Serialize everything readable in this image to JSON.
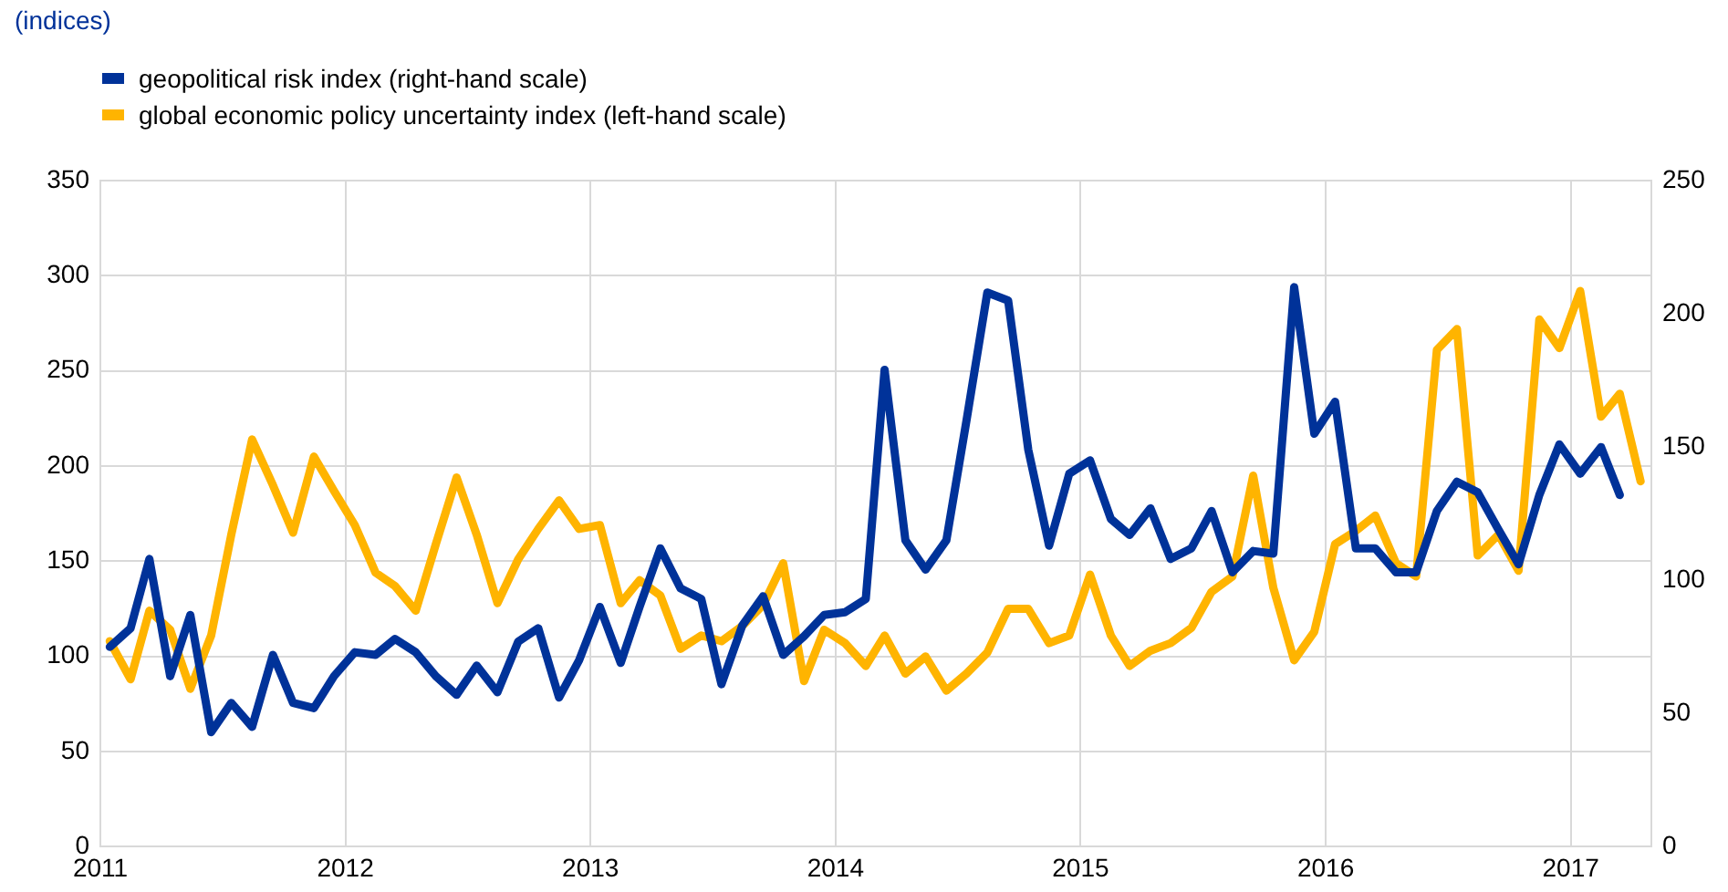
{
  "chart_data": {
    "type": "line",
    "annotations": [
      "(indices)"
    ],
    "x": [
      "2011-01-15",
      "2011-02-15",
      "2011-03-15",
      "2011-04-15",
      "2011-05-15",
      "2011-06-15",
      "2011-07-15",
      "2011-08-15",
      "2011-09-15",
      "2011-10-15",
      "2011-11-15",
      "2011-12-15",
      "2012-01-15",
      "2012-02-15",
      "2012-03-15",
      "2012-04-15",
      "2012-05-15",
      "2012-06-15",
      "2012-07-15",
      "2012-08-15",
      "2012-09-15",
      "2012-10-15",
      "2012-11-15",
      "2012-12-15",
      "2013-01-15",
      "2013-02-15",
      "2013-03-15",
      "2013-04-15",
      "2013-05-15",
      "2013-06-15",
      "2013-07-15",
      "2013-08-15",
      "2013-09-15",
      "2013-10-15",
      "2013-11-15",
      "2013-12-15",
      "2014-01-15",
      "2014-02-15",
      "2014-03-15",
      "2014-04-15",
      "2014-05-15",
      "2014-06-15",
      "2014-07-15",
      "2014-08-15",
      "2014-09-15",
      "2014-10-15",
      "2014-11-15",
      "2014-12-15",
      "2015-01-15",
      "2015-02-15",
      "2015-03-15",
      "2015-04-15",
      "2015-05-15",
      "2015-06-15",
      "2015-07-15",
      "2015-08-15",
      "2015-09-15",
      "2015-10-15",
      "2015-11-15",
      "2015-12-15",
      "2016-01-15",
      "2016-02-15",
      "2016-03-15",
      "2016-04-15",
      "2016-05-15",
      "2016-06-15",
      "2016-07-15",
      "2016-08-15",
      "2016-09-15",
      "2016-10-15",
      "2016-11-15",
      "2016-12-15",
      "2017-01-15",
      "2017-02-15",
      "2017-03-15",
      "2017-04-15"
    ],
    "series": [
      {
        "name": "geopolitical risk index (right-hand scale)",
        "color": "#003299",
        "axis": "y2",
        "values": [
          75,
          82,
          108,
          64,
          87,
          43,
          54,
          45,
          72,
          54,
          52,
          64,
          73,
          72,
          78,
          73,
          64,
          57,
          68,
          58,
          77,
          82,
          56,
          70,
          90,
          69,
          90,
          112,
          97,
          93,
          61,
          83,
          94,
          72,
          79,
          87,
          88,
          93,
          179,
          115,
          104,
          115,
          160,
          208,
          205,
          149,
          113,
          140,
          145,
          123,
          117,
          127,
          108,
          112,
          126,
          103,
          111,
          110,
          210,
          155,
          167,
          112,
          112,
          103,
          103,
          126,
          137,
          133,
          119,
          106,
          132,
          151,
          140,
          150,
          132,
          null
        ]
      },
      {
        "name": "global economic policy uncertainty index (left-hand scale)",
        "color": "#ffb400",
        "values": [
          108,
          88,
          124,
          114,
          83,
          111,
          164,
          214,
          190,
          165,
          205,
          187,
          169,
          144,
          137,
          124,
          159,
          194,
          164,
          128,
          151,
          167,
          182,
          167,
          169,
          128,
          140,
          132,
          104,
          111,
          108,
          116,
          127,
          149,
          87,
          114,
          107,
          95,
          111,
          91,
          100,
          82,
          91,
          102,
          125,
          125,
          107,
          111,
          143,
          111,
          95,
          103,
          107,
          115,
          134,
          142,
          195,
          136,
          98,
          113,
          159,
          166,
          174,
          149,
          142,
          261,
          272,
          153,
          164,
          145,
          277,
          262,
          292,
          226,
          238,
          192
        ]
      }
    ],
    "xlim": [
      "2011-01-01",
      "2017-05-01"
    ],
    "xticks": [
      "2011",
      "2012",
      "2013",
      "2014",
      "2015",
      "2016",
      "2017"
    ],
    "ylim": [
      0,
      350
    ],
    "yticks": [
      0,
      50,
      100,
      150,
      200,
      250,
      300,
      350
    ],
    "y2lim": [
      0,
      250
    ],
    "y2ticks": [
      0,
      50,
      100,
      150,
      200,
      250
    ],
    "grid": true,
    "legend": "top left",
    "marker": "none",
    "line_style": "solid"
  }
}
